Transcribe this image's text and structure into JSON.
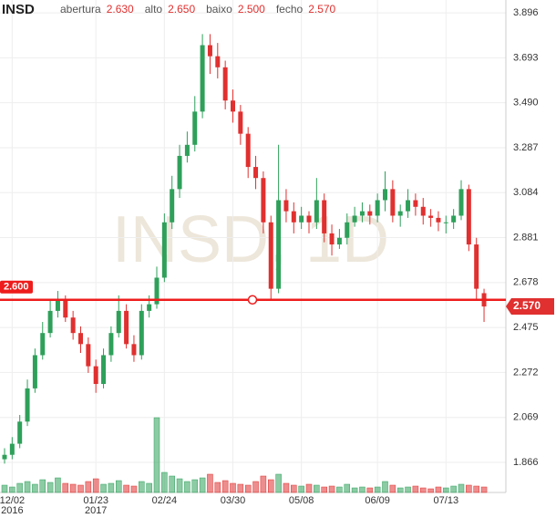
{
  "chart_data": {
    "type": "candlestick",
    "symbol": "INSD",
    "watermark": "INSD, 1D",
    "header": [
      {
        "key": "abertura",
        "value": "2.630"
      },
      {
        "key": "alto",
        "value": "2.650"
      },
      {
        "key": "baixo",
        "value": "2.500"
      },
      {
        "key": "fecho",
        "value": "2.570"
      }
    ],
    "categories": [
      null,
      "12/02",
      null,
      null,
      null,
      null,
      null,
      null,
      null,
      null,
      null,
      null,
      "01/23",
      null,
      null,
      null,
      null,
      null,
      null,
      null,
      null,
      "02/24",
      null,
      null,
      null,
      null,
      null,
      null,
      null,
      null,
      "03/30",
      null,
      null,
      null,
      null,
      null,
      null,
      null,
      null,
      "05/08",
      null,
      null,
      null,
      null,
      null,
      null,
      null,
      null,
      null,
      "06/09",
      null,
      null,
      null,
      null,
      null,
      null,
      null,
      null,
      "07/13",
      null,
      null,
      null,
      null,
      null
    ],
    "year_labels": [
      {
        "category": "12/02",
        "label": "2016"
      },
      {
        "category": "01/23",
        "label": "2017"
      }
    ],
    "open": [
      1.88,
      1.9,
      1.95,
      2.05,
      2.2,
      2.35,
      2.45,
      2.55,
      2.6,
      2.52,
      2.45,
      2.4,
      2.3,
      2.22,
      2.35,
      2.45,
      2.55,
      2.4,
      2.35,
      2.55,
      2.58,
      2.7,
      2.95,
      3.1,
      3.25,
      3.3,
      3.45,
      3.75,
      3.7,
      3.65,
      3.5,
      3.45,
      3.35,
      3.2,
      3.15,
      2.95,
      2.65,
      3.05,
      3.0,
      2.95,
      2.98,
      2.95,
      3.05,
      2.9,
      2.85,
      2.88,
      2.95,
      2.98,
      3.0,
      2.98,
      3.05,
      3.1,
      2.98,
      3.0,
      3.05,
      3.02,
      2.98,
      2.97,
      2.95,
      2.95,
      2.98,
      3.1,
      2.85,
      2.63
    ],
    "high": [
      1.93,
      1.98,
      2.08,
      2.24,
      2.38,
      2.5,
      2.6,
      2.64,
      2.62,
      2.55,
      2.48,
      2.43,
      2.33,
      2.38,
      2.48,
      2.62,
      2.58,
      2.44,
      2.58,
      2.62,
      2.75,
      2.99,
      3.16,
      3.3,
      3.36,
      3.52,
      3.8,
      3.8,
      3.76,
      3.68,
      3.55,
      3.48,
      3.38,
      3.25,
      3.18,
      2.98,
      3.3,
      3.1,
      3.04,
      3.02,
      3.0,
      3.15,
      3.08,
      2.94,
      2.92,
      2.99,
      3.02,
      3.04,
      3.03,
      3.08,
      3.18,
      3.14,
      3.03,
      3.1,
      3.08,
      3.06,
      3.01,
      3.0,
      2.98,
      3.01,
      3.14,
      3.12,
      2.88,
      2.65
    ],
    "low": [
      1.86,
      1.88,
      1.93,
      2.03,
      2.18,
      2.33,
      2.43,
      2.52,
      2.5,
      2.42,
      2.36,
      2.27,
      2.18,
      2.2,
      2.32,
      2.43,
      2.38,
      2.32,
      2.33,
      2.52,
      2.56,
      2.68,
      2.92,
      3.06,
      3.22,
      3.27,
      3.42,
      3.62,
      3.6,
      3.46,
      3.4,
      3.3,
      3.15,
      3.1,
      2.9,
      2.6,
      2.63,
      2.95,
      2.9,
      2.92,
      2.9,
      2.92,
      2.86,
      2.8,
      2.83,
      2.85,
      2.93,
      2.95,
      2.94,
      2.95,
      3.0,
      2.95,
      2.93,
      2.97,
      2.98,
      2.94,
      2.93,
      2.91,
      2.9,
      2.92,
      2.96,
      2.82,
      2.6,
      2.5
    ],
    "close": [
      1.9,
      1.95,
      2.05,
      2.2,
      2.35,
      2.45,
      2.55,
      2.6,
      2.52,
      2.45,
      2.4,
      2.3,
      2.22,
      2.35,
      2.45,
      2.55,
      2.4,
      2.35,
      2.55,
      2.58,
      2.7,
      2.95,
      3.1,
      3.25,
      3.3,
      3.45,
      3.75,
      3.7,
      3.65,
      3.5,
      3.45,
      3.35,
      3.2,
      3.15,
      2.95,
      2.65,
      3.05,
      3.0,
      2.95,
      2.98,
      2.95,
      3.05,
      2.9,
      2.85,
      2.88,
      2.95,
      2.98,
      3.0,
      2.98,
      3.05,
      3.1,
      2.98,
      3.0,
      3.05,
      3.02,
      2.98,
      2.97,
      2.95,
      2.95,
      2.98,
      3.1,
      2.85,
      2.65,
      2.57
    ],
    "volume": [
      8,
      6,
      10,
      12,
      9,
      14,
      11,
      16,
      10,
      9,
      8,
      12,
      15,
      9,
      10,
      13,
      8,
      7,
      12,
      10,
      82,
      22,
      18,
      15,
      12,
      14,
      16,
      20,
      11,
      13,
      10,
      9,
      8,
      12,
      18,
      14,
      20,
      10,
      8,
      7,
      9,
      8,
      6,
      7,
      6,
      9,
      5,
      6,
      5,
      6,
      12,
      8,
      5,
      6,
      7,
      5,
      4,
      6,
      5,
      7,
      9,
      8,
      7,
      6
    ],
    "volume_lim": [
      0,
      100
    ],
    "up_color": "#2ea05a",
    "down_color": "#e0302f",
    "ylim": [
      1.73,
      3.954
    ],
    "yticks": [
      3.896,
      3.693,
      {
        "value": 3.49,
        "label": "3.490"
      },
      3.287,
      3.084,
      2.881,
      2.678,
      2.475,
      2.272,
      2.069,
      1.866
    ],
    "grid": true,
    "hline": {
      "value": 2.6,
      "label": "2.600",
      "color": "#ee1c1c"
    },
    "last_price_label": "2.570"
  }
}
